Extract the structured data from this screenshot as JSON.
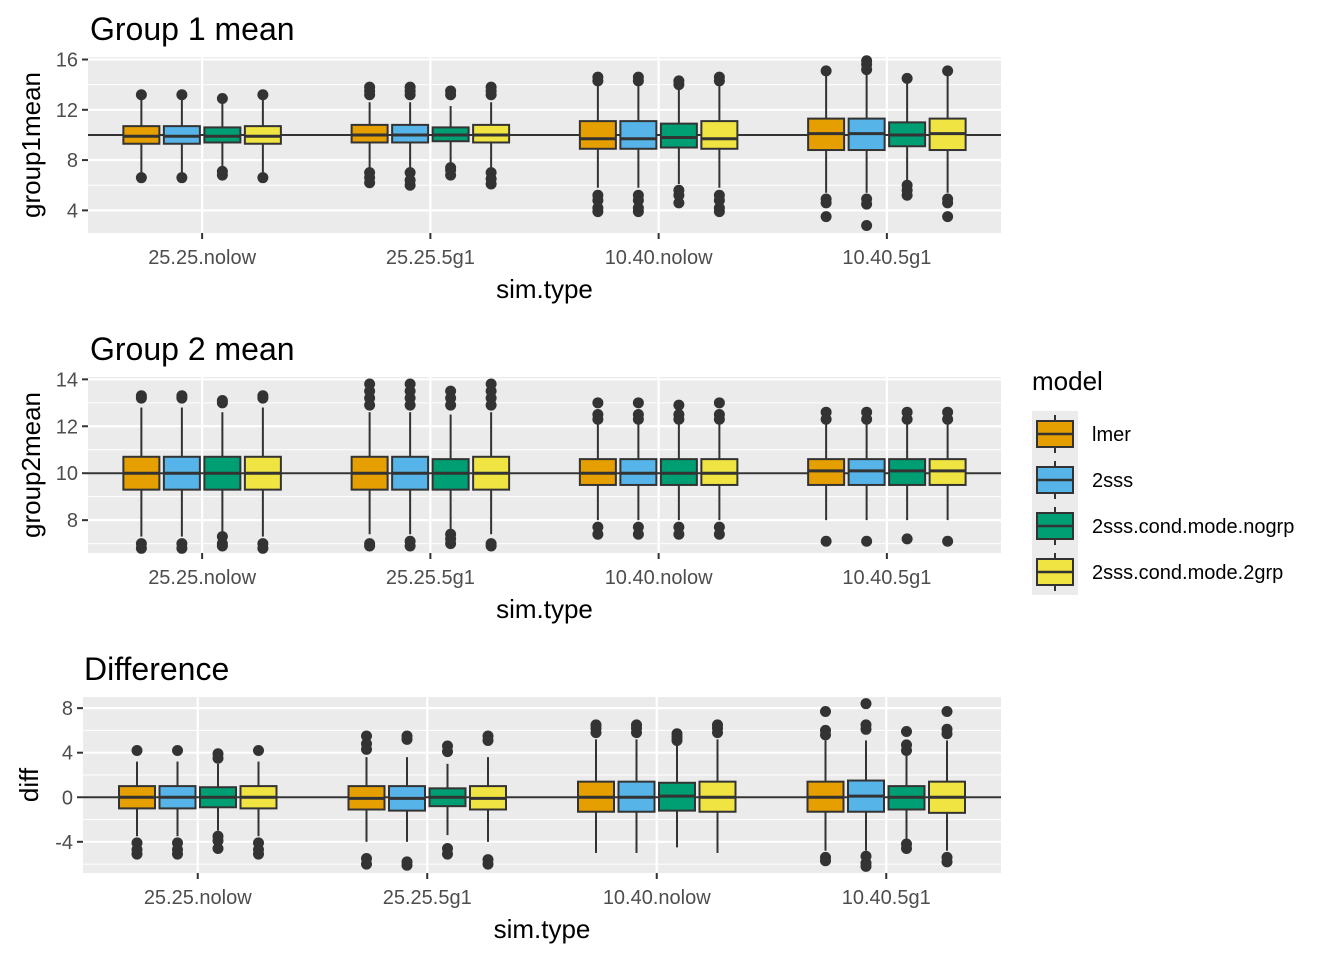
{
  "legend": {
    "title": "model",
    "position": "right",
    "items": [
      {
        "label": "lmer",
        "color": "#E69F00"
      },
      {
        "label": "2sss",
        "color": "#56B4E9"
      },
      {
        "label": "2sss.cond.mode.nogrp",
        "color": "#009E73"
      },
      {
        "label": "2sss.cond.mode.2grp",
        "color": "#F0E442"
      }
    ]
  },
  "chart_data": [
    {
      "type": "boxplot",
      "title": "Group 1 mean",
      "xlabel": "sim.type",
      "ylabel": "group1mean",
      "ylim": [
        2.2,
        16.2
      ],
      "yticks": [
        "4",
        "8",
        "12",
        "16"
      ],
      "ytick_values": [
        4,
        8,
        12,
        16
      ],
      "hline": 10,
      "grid": true,
      "categories": [
        "25.25.nolow",
        "25.25.5g1",
        "10.40.nolow",
        "10.40.5g1"
      ],
      "series": [
        {
          "name": "lmer",
          "boxes": [
            {
              "low": 6.7,
              "q1": 9.3,
              "median": 9.9,
              "q3": 10.7,
              "high": 12.9,
              "outliers": [
                13.2,
                6.6
              ]
            },
            {
              "low": 7.3,
              "q1": 9.4,
              "median": 10.0,
              "q3": 10.8,
              "high": 12.6,
              "outliers": [
                13.8,
                13.5,
                13.2,
                7.0,
                6.6,
                6.2
              ]
            },
            {
              "low": 5.8,
              "q1": 8.9,
              "median": 9.7,
              "q3": 11.1,
              "high": 14.2,
              "outliers": [
                14.6,
                14.3,
                5.2,
                4.8,
                4.2,
                3.9
              ]
            },
            {
              "low": 5.4,
              "q1": 8.8,
              "median": 10.1,
              "q3": 11.3,
              "high": 15.0,
              "outliers": [
                15.1,
                4.9,
                4.6,
                3.5
              ]
            }
          ]
        },
        {
          "name": "2sss",
          "boxes": [
            {
              "low": 6.7,
              "q1": 9.3,
              "median": 9.9,
              "q3": 10.7,
              "high": 12.9,
              "outliers": [
                13.2,
                6.6
              ]
            },
            {
              "low": 7.3,
              "q1": 9.4,
              "median": 10.0,
              "q3": 10.8,
              "high": 12.6,
              "outliers": [
                13.8,
                13.5,
                13.2,
                7.0,
                6.4,
                6.0
              ]
            },
            {
              "low": 5.8,
              "q1": 8.9,
              "median": 9.7,
              "q3": 11.1,
              "high": 14.2,
              "outliers": [
                14.6,
                14.3,
                5.2,
                4.8,
                4.2,
                3.9
              ]
            },
            {
              "low": 5.4,
              "q1": 8.8,
              "median": 10.1,
              "q3": 11.3,
              "high": 15.0,
              "outliers": [
                15.9,
                15.6,
                15.2,
                4.9,
                4.5,
                2.8
              ]
            }
          ]
        },
        {
          "name": "2sss.cond.mode.nogrp",
          "boxes": [
            {
              "low": 7.1,
              "q1": 9.4,
              "median": 9.9,
              "q3": 10.6,
              "high": 12.7,
              "outliers": [
                12.9,
                7.1,
                6.8
              ]
            },
            {
              "low": 7.7,
              "q1": 9.5,
              "median": 10.0,
              "q3": 10.6,
              "high": 12.3,
              "outliers": [
                13.5,
                13.2,
                7.4,
                7.2,
                6.8
              ]
            },
            {
              "low": 6.1,
              "q1": 9.0,
              "median": 9.8,
              "q3": 10.9,
              "high": 13.6,
              "outliers": [
                14.3,
                14.0,
                5.6,
                5.2,
                4.6
              ]
            },
            {
              "low": 6.3,
              "q1": 9.1,
              "median": 10.0,
              "q3": 11.0,
              "high": 14.2,
              "outliers": [
                14.5,
                6.0,
                5.6,
                5.2
              ]
            }
          ]
        },
        {
          "name": "2sss.cond.mode.2grp",
          "boxes": [
            {
              "low": 6.7,
              "q1": 9.3,
              "median": 9.9,
              "q3": 10.7,
              "high": 12.9,
              "outliers": [
                13.2,
                6.6
              ]
            },
            {
              "low": 7.3,
              "q1": 9.4,
              "median": 10.0,
              "q3": 10.8,
              "high": 12.6,
              "outliers": [
                13.8,
                13.5,
                13.2,
                7.0,
                6.5,
                6.1
              ]
            },
            {
              "low": 5.8,
              "q1": 8.9,
              "median": 9.7,
              "q3": 11.1,
              "high": 14.2,
              "outliers": [
                14.6,
                14.3,
                5.2,
                4.8,
                4.2,
                3.9
              ]
            },
            {
              "low": 5.4,
              "q1": 8.8,
              "median": 10.1,
              "q3": 11.3,
              "high": 15.0,
              "outliers": [
                15.1,
                4.9,
                4.6,
                3.5
              ]
            }
          ]
        }
      ]
    },
    {
      "type": "boxplot",
      "title": "Group 2 mean",
      "xlabel": "sim.type",
      "ylabel": "group2mean",
      "ylim": [
        6.6,
        14.1
      ],
      "yticks": [
        "8",
        "10",
        "12",
        "14"
      ],
      "ytick_values": [
        8,
        10,
        12,
        14
      ],
      "hline": 10,
      "grid": true,
      "categories": [
        "25.25.nolow",
        "25.25.5g1",
        "10.40.nolow",
        "10.40.5g1"
      ],
      "series": [
        {
          "name": "lmer",
          "boxes": [
            {
              "low": 7.3,
              "q1": 9.3,
              "median": 10.0,
              "q3": 10.7,
              "high": 12.8,
              "outliers": [
                13.3,
                13.2,
                7.0,
                6.8
              ]
            },
            {
              "low": 7.4,
              "q1": 9.3,
              "median": 10.0,
              "q3": 10.7,
              "high": 12.6,
              "outliers": [
                13.8,
                13.5,
                13.2,
                12.9,
                7.0,
                6.9
              ]
            },
            {
              "low": 8.0,
              "q1": 9.5,
              "median": 10.0,
              "q3": 10.6,
              "high": 12.1,
              "outliers": [
                13.0,
                12.5,
                12.3,
                7.7,
                7.4
              ]
            },
            {
              "low": 8.0,
              "q1": 9.5,
              "median": 10.1,
              "q3": 10.6,
              "high": 12.3,
              "outliers": [
                12.6,
                12.3,
                7.1
              ]
            }
          ]
        },
        {
          "name": "2sss",
          "boxes": [
            {
              "low": 7.3,
              "q1": 9.3,
              "median": 10.0,
              "q3": 10.7,
              "high": 12.8,
              "outliers": [
                13.3,
                13.2,
                7.0,
                6.8
              ]
            },
            {
              "low": 7.4,
              "q1": 9.3,
              "median": 10.0,
              "q3": 10.7,
              "high": 12.6,
              "outliers": [
                13.8,
                13.5,
                13.2,
                12.9,
                7.1,
                6.9
              ]
            },
            {
              "low": 8.0,
              "q1": 9.5,
              "median": 10.0,
              "q3": 10.6,
              "high": 12.1,
              "outliers": [
                13.0,
                12.5,
                12.3,
                7.7,
                7.4
              ]
            },
            {
              "low": 8.0,
              "q1": 9.5,
              "median": 10.1,
              "q3": 10.6,
              "high": 12.3,
              "outliers": [
                12.6,
                12.3,
                7.1
              ]
            }
          ]
        },
        {
          "name": "2sss.cond.mode.nogrp",
          "boxes": [
            {
              "low": 7.5,
              "q1": 9.3,
              "median": 10.0,
              "q3": 10.7,
              "high": 12.6,
              "outliers": [
                13.1,
                13.0,
                7.3,
                7.0,
                6.9
              ]
            },
            {
              "low": 7.6,
              "q1": 9.3,
              "median": 10.0,
              "q3": 10.6,
              "high": 12.5,
              "outliers": [
                13.5,
                13.2,
                12.9,
                7.4,
                7.2,
                7.0
              ]
            },
            {
              "low": 8.0,
              "q1": 9.5,
              "median": 10.0,
              "q3": 10.6,
              "high": 12.1,
              "outliers": [
                12.9,
                12.5,
                12.3,
                7.7,
                7.4
              ]
            },
            {
              "low": 8.0,
              "q1": 9.5,
              "median": 10.1,
              "q3": 10.6,
              "high": 12.2,
              "outliers": [
                12.6,
                12.3,
                7.2
              ]
            }
          ]
        },
        {
          "name": "2sss.cond.mode.2grp",
          "boxes": [
            {
              "low": 7.3,
              "q1": 9.3,
              "median": 10.0,
              "q3": 10.7,
              "high": 12.8,
              "outliers": [
                13.3,
                13.2,
                7.0,
                6.8
              ]
            },
            {
              "low": 7.4,
              "q1": 9.3,
              "median": 10.0,
              "q3": 10.7,
              "high": 12.6,
              "outliers": [
                13.8,
                13.5,
                13.2,
                12.9,
                7.0,
                6.9
              ]
            },
            {
              "low": 8.0,
              "q1": 9.5,
              "median": 10.0,
              "q3": 10.6,
              "high": 12.1,
              "outliers": [
                13.0,
                12.5,
                12.3,
                7.7,
                7.4
              ]
            },
            {
              "low": 8.0,
              "q1": 9.5,
              "median": 10.1,
              "q3": 10.6,
              "high": 12.3,
              "outliers": [
                12.6,
                12.3,
                7.1
              ]
            }
          ]
        }
      ]
    },
    {
      "type": "boxplot",
      "title": "Difference",
      "xlabel": "sim.type",
      "ylabel": "diff",
      "ylim": [
        -6.8,
        9.0
      ],
      "yticks": [
        "-4",
        "0",
        "4",
        "8"
      ],
      "ytick_values": [
        -4,
        0,
        4,
        8
      ],
      "hline": 0,
      "grid": true,
      "categories": [
        "25.25.nolow",
        "25.25.5g1",
        "10.40.nolow",
        "10.40.5g1"
      ],
      "series": [
        {
          "name": "lmer",
          "boxes": [
            {
              "low": -3.5,
              "q1": -1.0,
              "median": 0.0,
              "q3": 1.0,
              "high": 3.2,
              "outliers": [
                4.2,
                -4.1,
                -4.7,
                -5.1
              ]
            },
            {
              "low": -4.0,
              "q1": -1.1,
              "median": -0.1,
              "q3": 1.0,
              "high": 3.6,
              "outliers": [
                5.5,
                4.8,
                4.3,
                -5.5,
                -6.0
              ]
            },
            {
              "low": -5.0,
              "q1": -1.3,
              "median": 0.0,
              "q3": 1.4,
              "high": 5.2,
              "outliers": [
                6.5,
                6.2,
                5.8
              ]
            },
            {
              "low": -4.8,
              "q1": -1.3,
              "median": 0.0,
              "q3": 1.4,
              "high": 5.1,
              "outliers": [
                7.7,
                6.0,
                5.6,
                -5.4,
                -5.7
              ]
            }
          ]
        },
        {
          "name": "2sss",
          "boxes": [
            {
              "low": -3.5,
              "q1": -1.0,
              "median": 0.0,
              "q3": 1.0,
              "high": 3.2,
              "outliers": [
                4.2,
                -4.1,
                -4.7,
                -5.1
              ]
            },
            {
              "low": -4.0,
              "q1": -1.2,
              "median": -0.1,
              "q3": 1.0,
              "high": 3.6,
              "outliers": [
                5.5,
                5.2,
                -5.8,
                -6.1
              ]
            },
            {
              "low": -5.0,
              "q1": -1.3,
              "median": 0.0,
              "q3": 1.4,
              "high": 5.2,
              "outliers": [
                6.5,
                6.2,
                5.8
              ]
            },
            {
              "low": -4.8,
              "q1": -1.3,
              "median": 0.1,
              "q3": 1.5,
              "high": 5.1,
              "outliers": [
                8.4,
                6.5,
                6.1,
                -5.3,
                -5.9,
                -6.2
              ]
            }
          ]
        },
        {
          "name": "2sss.cond.mode.nogrp",
          "boxes": [
            {
              "low": -3.0,
              "q1": -0.9,
              "median": 0.0,
              "q3": 0.9,
              "high": 3.0,
              "outliers": [
                3.9,
                3.5,
                -3.5,
                -3.9,
                -4.6
              ]
            },
            {
              "low": -3.4,
              "q1": -0.8,
              "median": 0.0,
              "q3": 0.8,
              "high": 3.0,
              "outliers": [
                4.6,
                4.1,
                -4.6,
                -5.1
              ]
            },
            {
              "low": -4.5,
              "q1": -1.2,
              "median": 0.1,
              "q3": 1.3,
              "high": 4.8,
              "outliers": [
                5.7,
                5.4,
                5.1
              ]
            },
            {
              "low": -4.0,
              "q1": -1.1,
              "median": 0.0,
              "q3": 1.0,
              "high": 3.8,
              "outliers": [
                5.9,
                4.7,
                4.2,
                -4.2,
                -4.6
              ]
            }
          ]
        },
        {
          "name": "2sss.cond.mode.2grp",
          "boxes": [
            {
              "low": -3.5,
              "q1": -1.0,
              "median": 0.0,
              "q3": 1.0,
              "high": 3.2,
              "outliers": [
                4.2,
                -4.1,
                -4.7,
                -5.1
              ]
            },
            {
              "low": -4.0,
              "q1": -1.1,
              "median": -0.1,
              "q3": 1.0,
              "high": 3.6,
              "outliers": [
                5.5,
                5.1,
                -5.6,
                -6.0
              ]
            },
            {
              "low": -5.0,
              "q1": -1.3,
              "median": 0.0,
              "q3": 1.4,
              "high": 5.2,
              "outliers": [
                6.5,
                6.2,
                5.8
              ]
            },
            {
              "low": -4.8,
              "q1": -1.4,
              "median": 0.0,
              "q3": 1.4,
              "high": 5.1,
              "outliers": [
                7.7,
                6.1,
                5.7,
                -5.4,
                -5.8
              ]
            }
          ]
        }
      ]
    }
  ]
}
